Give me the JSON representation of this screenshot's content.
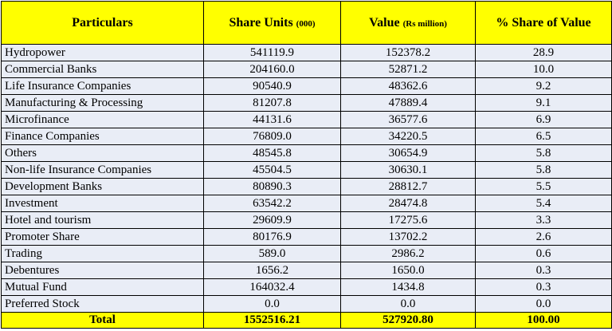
{
  "table": {
    "headers": {
      "particulars": "Particulars",
      "share_units": "Share Units",
      "share_units_unit": "(000)",
      "value": "Value",
      "value_unit": "(Rs million)",
      "pct_share": "% Share of Value"
    },
    "rows": [
      {
        "particulars": "Hydropower",
        "share_units": "541119.9",
        "value": "152378.2",
        "pct": "28.9"
      },
      {
        "particulars": "Commercial Banks",
        "share_units": "204160.0",
        "value": "52871.2",
        "pct": "10.0"
      },
      {
        "particulars": "Life Insurance Companies",
        "share_units": "90540.9",
        "value": "48362.6",
        "pct": "9.2"
      },
      {
        "particulars": "Manufacturing & Processing",
        "share_units": "81207.8",
        "value": "47889.4",
        "pct": "9.1"
      },
      {
        "particulars": "Microfinance",
        "share_units": "44131.6",
        "value": "36577.6",
        "pct": "6.9"
      },
      {
        "particulars": "Finance Companies",
        "share_units": "76809.0",
        "value": "34220.5",
        "pct": "6.5"
      },
      {
        "particulars": "Others",
        "share_units": "48545.8",
        "value": "30654.9",
        "pct": "5.8"
      },
      {
        "particulars": "Non-life Insurance Companies",
        "share_units": "45504.5",
        "value": "30630.1",
        "pct": "5.8"
      },
      {
        "particulars": "Development Banks",
        "share_units": "80890.3",
        "value": "28812.7",
        "pct": "5.5"
      },
      {
        "particulars": "Investment",
        "share_units": "63542.2",
        "value": "28474.8",
        "pct": "5.4"
      },
      {
        "particulars": "Hotel and tourism",
        "share_units": "29609.9",
        "value": "17275.6",
        "pct": "3.3"
      },
      {
        "particulars": "Promoter Share",
        "share_units": "80176.9",
        "value": "13702.2",
        "pct": "2.6"
      },
      {
        "particulars": "Trading",
        "share_units": "589.0",
        "value": "2986.2",
        "pct": "0.6"
      },
      {
        "particulars": "Debentures",
        "share_units": "1656.2",
        "value": "1650.0",
        "pct": "0.3"
      },
      {
        "particulars": "Mutual Fund",
        "share_units": "164032.4",
        "value": "1434.8",
        "pct": "0.3"
      },
      {
        "particulars": "Preferred Stock",
        "share_units": "0.0",
        "value": "0.0",
        "pct": "0.0"
      }
    ],
    "total": {
      "label": "Total",
      "share_units": "1552516.21",
      "value": "527920.80",
      "pct": "100.00"
    }
  },
  "colors": {
    "header_bg": "#ffff00",
    "row_bg": "#e9edf6",
    "border": "#000000"
  }
}
